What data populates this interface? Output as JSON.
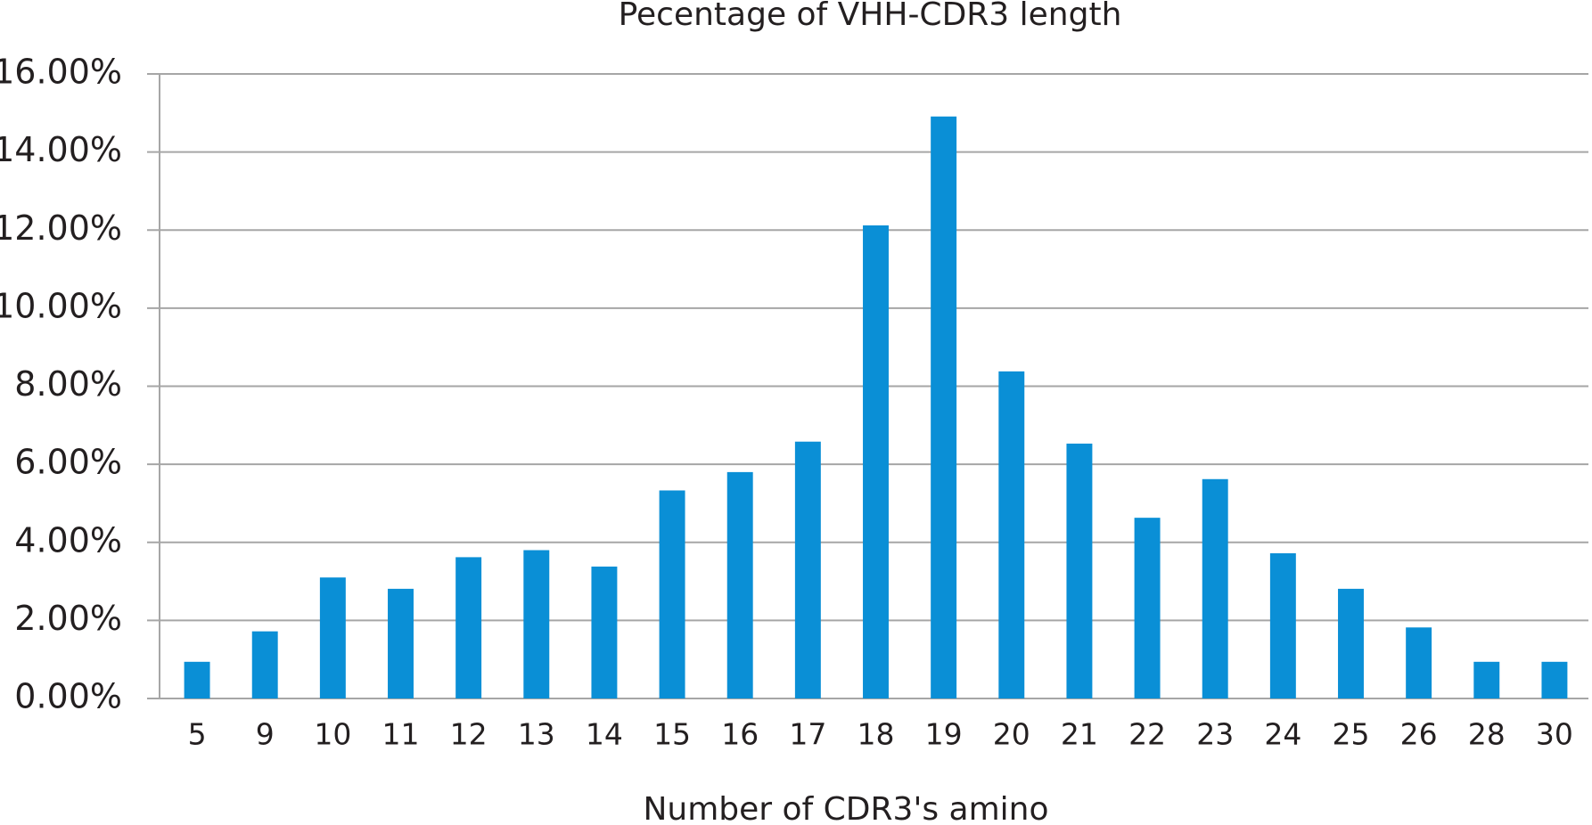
{
  "chart_data": {
    "type": "bar",
    "title": "Pecentage of VHH-CDR3 length",
    "x_label": "Number of CDR3's amino",
    "categories": [
      "5",
      "9",
      "10",
      "11",
      "12",
      "13",
      "14",
      "15",
      "16",
      "17",
      "18",
      "19",
      "20",
      "21",
      "22",
      "23",
      "24",
      "25",
      "26",
      "28",
      "30"
    ],
    "values": [
      0.94,
      1.72,
      3.1,
      2.81,
      3.62,
      3.8,
      3.38,
      5.33,
      5.8,
      6.58,
      12.12,
      14.91,
      8.38,
      6.53,
      4.63,
      5.62,
      3.72,
      2.81,
      1.82,
      0.94,
      0.94
    ],
    "color": "#0a8fd6",
    "ylim": [
      0,
      16
    ],
    "yticks": [
      {
        "value": 0,
        "label": "0.00%"
      },
      {
        "value": 2,
        "label": "2.00%"
      },
      {
        "value": 4,
        "label": "4.00%"
      },
      {
        "value": 6,
        "label": "6.00%"
      },
      {
        "value": 8,
        "label": "8.00%"
      },
      {
        "value": 10,
        "label": "10.00%"
      },
      {
        "value": 12,
        "label": "12.00%"
      },
      {
        "value": 14,
        "label": "14.00%"
      },
      {
        "value": 16,
        "label": "16.00%"
      }
    ],
    "grid": true
  }
}
